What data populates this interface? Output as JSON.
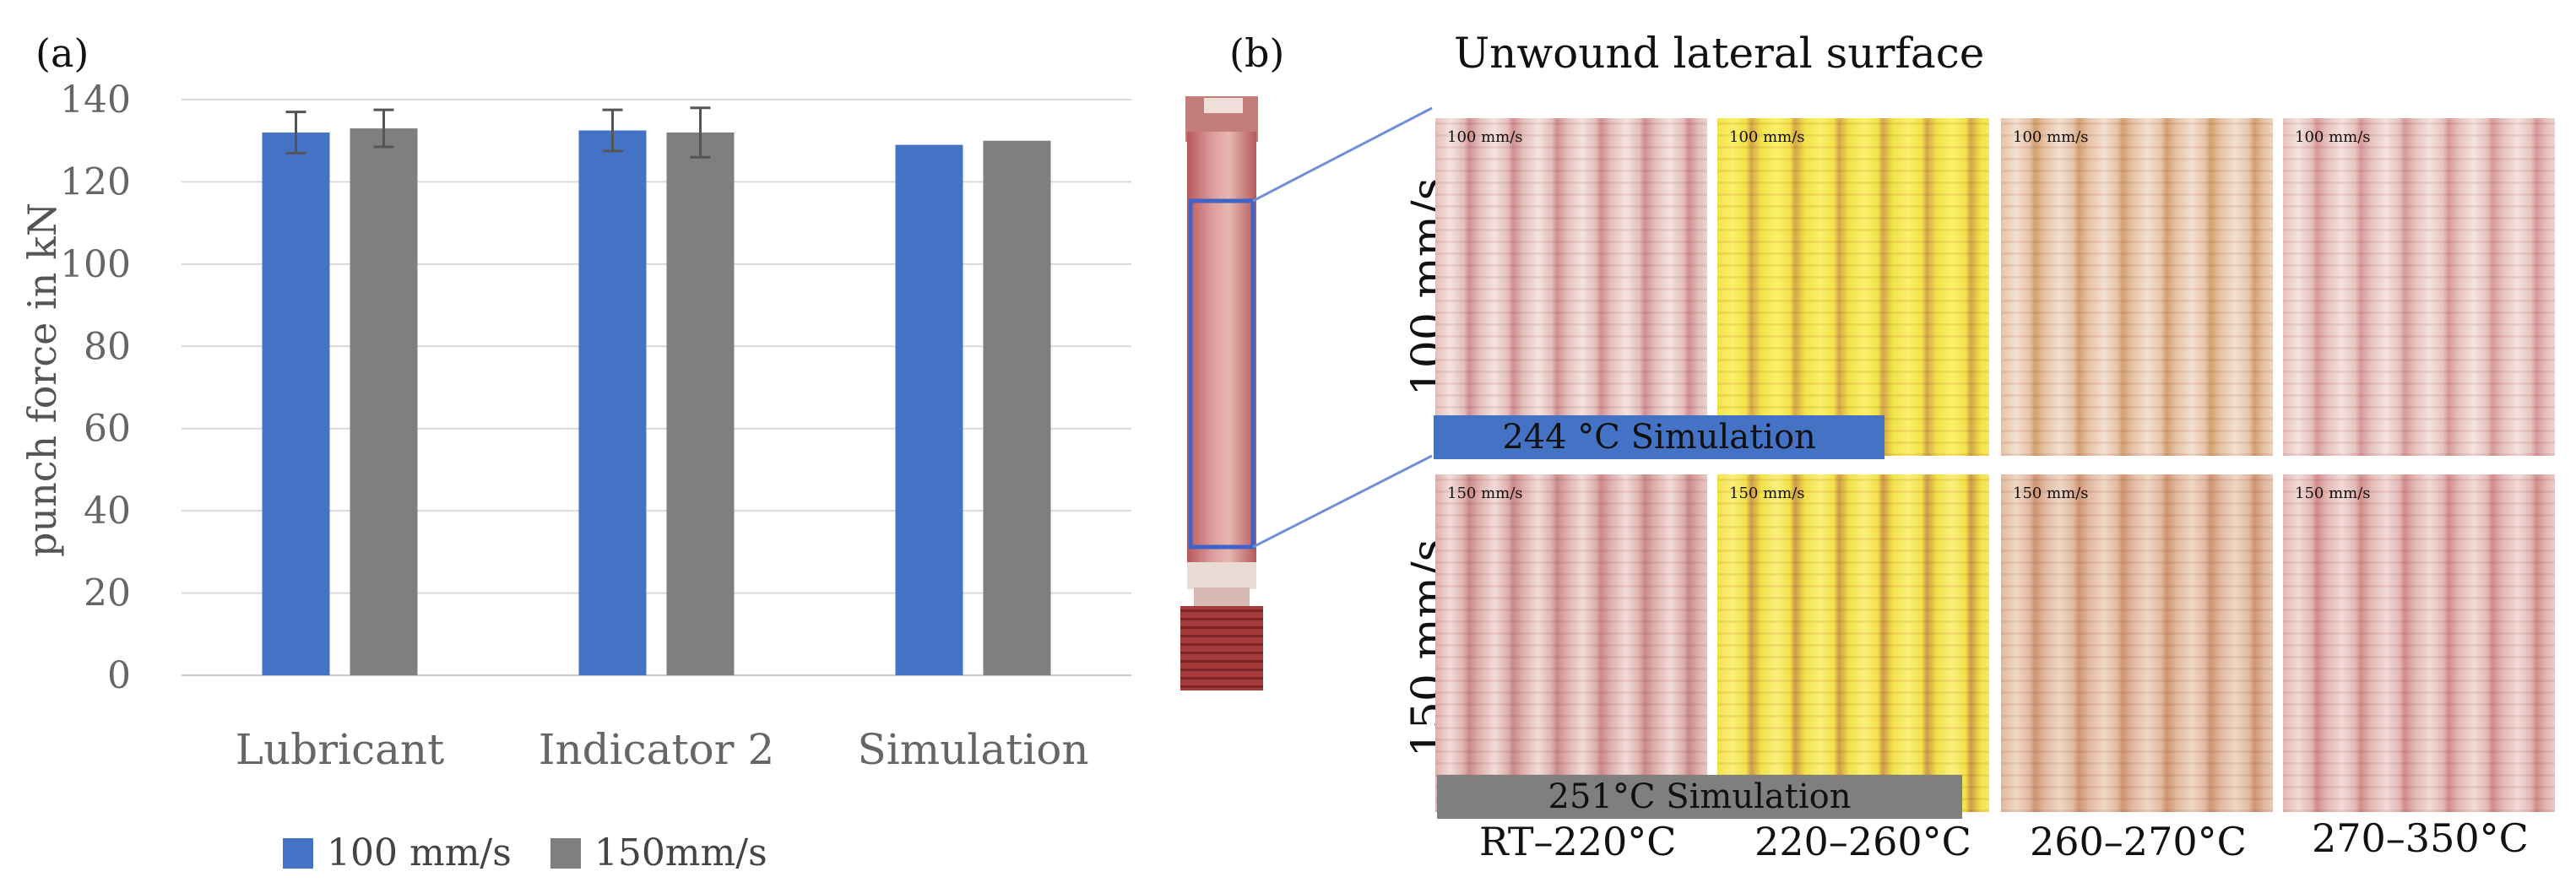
{
  "panel_a_label": "(a)",
  "panel_b_label": "(b)",
  "chart_data": {
    "type": "bar",
    "categories": [
      "Lubricant",
      "Indicator 2",
      "Simulation"
    ],
    "series": [
      {
        "name": "100 mm/s",
        "values": [
          132,
          132.5,
          129
        ],
        "errors": [
          5,
          5,
          null
        ]
      },
      {
        "name": "150mm/s",
        "values": [
          133,
          132,
          130
        ],
        "errors": [
          4.5,
          6,
          null
        ]
      }
    ],
    "ylabel": "punch  force in kN",
    "xlabel": "",
    "ylim": [
      0,
      140
    ],
    "yticks": [
      0,
      20,
      40,
      60,
      80,
      100,
      120,
      140
    ],
    "grid": true,
    "legend_position": "bottom",
    "colors": {
      "100 mm/s": "#4472C4",
      "150mm/s": "#7F7F7F"
    }
  },
  "panel_b": {
    "title": "Unwound lateral surface",
    "row_labels": [
      "100 mm/s",
      "150 mm/s"
    ],
    "row1_tags": [
      "100 mm/s",
      "100 mm/s",
      "100 mm/s",
      "100 mm/s"
    ],
    "row2_tags": [
      "150 mm/s",
      "150 mm/s",
      "150 mm/s",
      "150 mm/s"
    ],
    "column_ranges": [
      "RT–220°C",
      "220–260°C",
      "260–270°C",
      "270–350°C"
    ],
    "banner_100": "244 °C Simulation",
    "banner_150": "251°C  Simulation",
    "banner_100_color": "#4472C4",
    "banner_150_color": "#7F7F7F"
  }
}
